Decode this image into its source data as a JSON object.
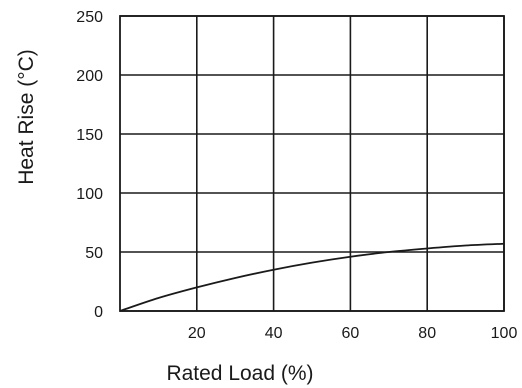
{
  "chart_data": {
    "type": "line",
    "title": "",
    "xlabel": "Rated Load (%)",
    "ylabel": "Heat Rise (°C)",
    "xlim": [
      0,
      100
    ],
    "ylim": [
      0,
      250
    ],
    "x_ticks": [
      20,
      40,
      60,
      80,
      100
    ],
    "x_tick_labels": [
      "20",
      "40",
      "60",
      "80",
      "100"
    ],
    "y_ticks": [
      0,
      50,
      100,
      150,
      200,
      250
    ],
    "y_tick_labels": [
      "0",
      "50",
      "100",
      "150",
      "200",
      "250"
    ],
    "grid": true,
    "legend": "none",
    "series": [
      {
        "x": [
          0,
          10,
          20,
          30,
          40,
          50,
          60,
          70,
          80,
          90,
          100
        ],
        "values": [
          0,
          11,
          20,
          28,
          35,
          41,
          46,
          50,
          53,
          55.5,
          57
        ]
      }
    ]
  }
}
